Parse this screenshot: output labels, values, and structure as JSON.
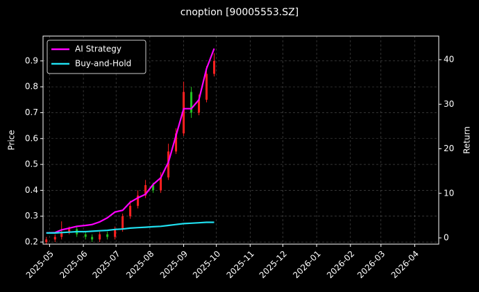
{
  "chart_data": {
    "type": "candlestick",
    "title": "cnoption [90005553.SZ]",
    "ylabel": "Price",
    "y2label": "Return",
    "x": [
      "2025-04-28",
      "2025-05-06",
      "2025-05-12",
      "2025-05-19",
      "2025-05-26",
      "2025-06-03",
      "2025-06-09",
      "2025-06-16",
      "2025-06-23",
      "2025-06-30",
      "2025-07-07",
      "2025-07-14",
      "2025-07-21",
      "2025-07-28",
      "2025-08-04",
      "2025-08-11",
      "2025-08-18",
      "2025-08-25",
      "2025-09-01",
      "2025-09-08",
      "2025-09-15",
      "2025-09-22",
      "2025-09-29"
    ],
    "open": [
      0.2,
      0.21,
      0.22,
      0.24,
      0.25,
      0.23,
      0.22,
      0.21,
      0.23,
      0.22,
      0.25,
      0.3,
      0.34,
      0.38,
      0.42,
      0.4,
      0.45,
      0.55,
      0.62,
      0.78,
      0.7,
      0.75,
      0.85
    ],
    "high": [
      0.22,
      0.23,
      0.28,
      0.26,
      0.26,
      0.24,
      0.23,
      0.24,
      0.24,
      0.26,
      0.31,
      0.36,
      0.4,
      0.44,
      0.43,
      0.47,
      0.58,
      0.64,
      0.82,
      0.8,
      0.77,
      0.88,
      0.93
    ],
    "low": [
      0.19,
      0.2,
      0.21,
      0.23,
      0.22,
      0.21,
      0.2,
      0.2,
      0.21,
      0.21,
      0.24,
      0.29,
      0.33,
      0.37,
      0.39,
      0.39,
      0.44,
      0.54,
      0.61,
      0.68,
      0.69,
      0.74,
      0.84
    ],
    "close": [
      0.21,
      0.22,
      0.24,
      0.25,
      0.23,
      0.22,
      0.21,
      0.23,
      0.22,
      0.25,
      0.3,
      0.34,
      0.38,
      0.42,
      0.4,
      0.45,
      0.55,
      0.62,
      0.78,
      0.7,
      0.75,
      0.85,
      0.9
    ],
    "up_color": "#ff2020",
    "down_color": "#20c020",
    "series": [
      {
        "name": "AI Strategy",
        "color": "#ff00ff",
        "axis": "y2",
        "values": [
          1.1,
          1.2,
          1.8,
          2.2,
          2.6,
          2.8,
          3.0,
          3.6,
          4.5,
          5.8,
          6.2,
          8.0,
          9.0,
          9.8,
          12.0,
          13.5,
          17.0,
          23.0,
          29.0,
          29.0,
          31.0,
          38.0,
          42.5
        ]
      },
      {
        "name": "Buy-and-Hold",
        "color": "#20e0f0",
        "axis": "y2",
        "values": [
          1.1,
          1.1,
          1.2,
          1.3,
          1.4,
          1.4,
          1.5,
          1.6,
          1.7,
          1.9,
          2.0,
          2.2,
          2.3,
          2.4,
          2.5,
          2.6,
          2.8,
          3.0,
          3.2,
          3.3,
          3.4,
          3.5,
          3.5
        ]
      }
    ],
    "xlim": [
      "2025-04-25",
      "2026-04-23"
    ],
    "xticks": [
      {
        "value": "2025-05-01",
        "label": "2025-05"
      },
      {
        "value": "2025-06-01",
        "label": "2025-06"
      },
      {
        "value": "2025-07-01",
        "label": "2025-07"
      },
      {
        "value": "2025-08-01",
        "label": "2025-08"
      },
      {
        "value": "2025-09-01",
        "label": "2025-09"
      },
      {
        "value": "2025-10-01",
        "label": "2025-10"
      },
      {
        "value": "2025-11-01",
        "label": "2025-11"
      },
      {
        "value": "2025-12-01",
        "label": "2025-12"
      },
      {
        "value": "2026-01-01",
        "label": "2026-01"
      },
      {
        "value": "2026-02-01",
        "label": "2026-02"
      },
      {
        "value": "2026-03-01",
        "label": "2026-03"
      },
      {
        "value": "2026-04-01",
        "label": "2026-04"
      }
    ],
    "ylim": [
      0.192,
      0.996
    ],
    "yticks": [
      0.2,
      0.3,
      0.4,
      0.5,
      0.6,
      0.7,
      0.8,
      0.9
    ],
    "y2lim": [
      -1.4,
      45.3
    ],
    "y2ticks": [
      0,
      10,
      20,
      30,
      40
    ],
    "grid": true,
    "legend": "upper left"
  }
}
